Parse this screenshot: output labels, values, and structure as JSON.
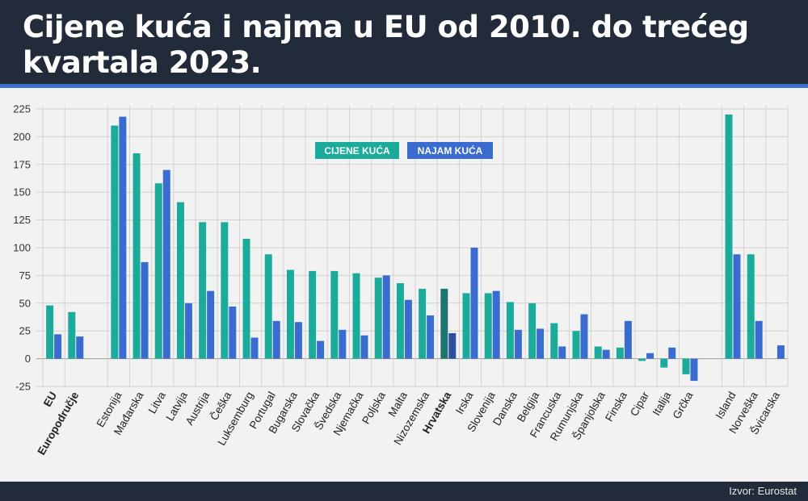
{
  "header": {
    "title": "Cijene kuća i najma u EU od 2010. do trećeg kvartala 2023."
  },
  "footer": {
    "source": "Izvor: Eurostat"
  },
  "colors": {
    "teal": "#1aab9b",
    "blue": "#3a6ccf",
    "teal_highlight": "#1e7470",
    "blue_highlight": "#2c4f9e",
    "header": "#222b3a",
    "accent_line": "#3d6fd0"
  },
  "chart_data": {
    "type": "bar",
    "title": "Cijene kuća i najma u EU od 2010. do trećeg kvartala 2023.",
    "xlabel": "",
    "ylabel": "",
    "ylim": [
      -25,
      225
    ],
    "yticks": [
      -25,
      0,
      25,
      50,
      75,
      100,
      125,
      150,
      175,
      200,
      225
    ],
    "grid": true,
    "legend_placement": "top-center",
    "categories": [
      "EU",
      "Europodručje",
      "Estonija",
      "Mađarska",
      "Litva",
      "Latvija",
      "Austrija",
      "Češka",
      "Luksemburg",
      "Portugal",
      "Bugarska",
      "Slovačka",
      "Švedska",
      "Njemačka",
      "Poljska",
      "Malta",
      "Nizozemska",
      "Hrvatska",
      "Irska",
      "Slovenija",
      "Danska",
      "Belgija",
      "Francuska",
      "Rumunjska",
      "Španjolska",
      "Finska",
      "Cipar",
      "Italija",
      "Grčka",
      "Island",
      "Norveška",
      "Švicarska"
    ],
    "bold_categories": [
      "EU",
      "Europodručje",
      "Hrvatska"
    ],
    "highlight_category": "Hrvatska",
    "groups": [
      [
        0,
        1
      ],
      [
        2,
        28
      ],
      [
        29,
        31
      ]
    ],
    "series": [
      {
        "name": "CIJENE KUĆA",
        "color": "#1aab9b",
        "values": [
          48,
          42,
          210,
          185,
          158,
          141,
          123,
          123,
          108,
          94,
          80,
          79,
          79,
          77,
          73,
          68,
          63,
          63,
          59,
          59,
          51,
          50,
          32,
          25,
          11,
          10,
          -2,
          -8,
          -14,
          220,
          94,
          null
        ]
      },
      {
        "name": "NAJAM KUĆA",
        "color": "#3a6ccf",
        "values": [
          22,
          20,
          218,
          87,
          170,
          50,
          61,
          47,
          19,
          34,
          33,
          16,
          26,
          21,
          75,
          53,
          39,
          23,
          100,
          61,
          26,
          27,
          11,
          40,
          8,
          34,
          5,
          10,
          -20,
          94,
          34,
          12
        ]
      }
    ]
  }
}
